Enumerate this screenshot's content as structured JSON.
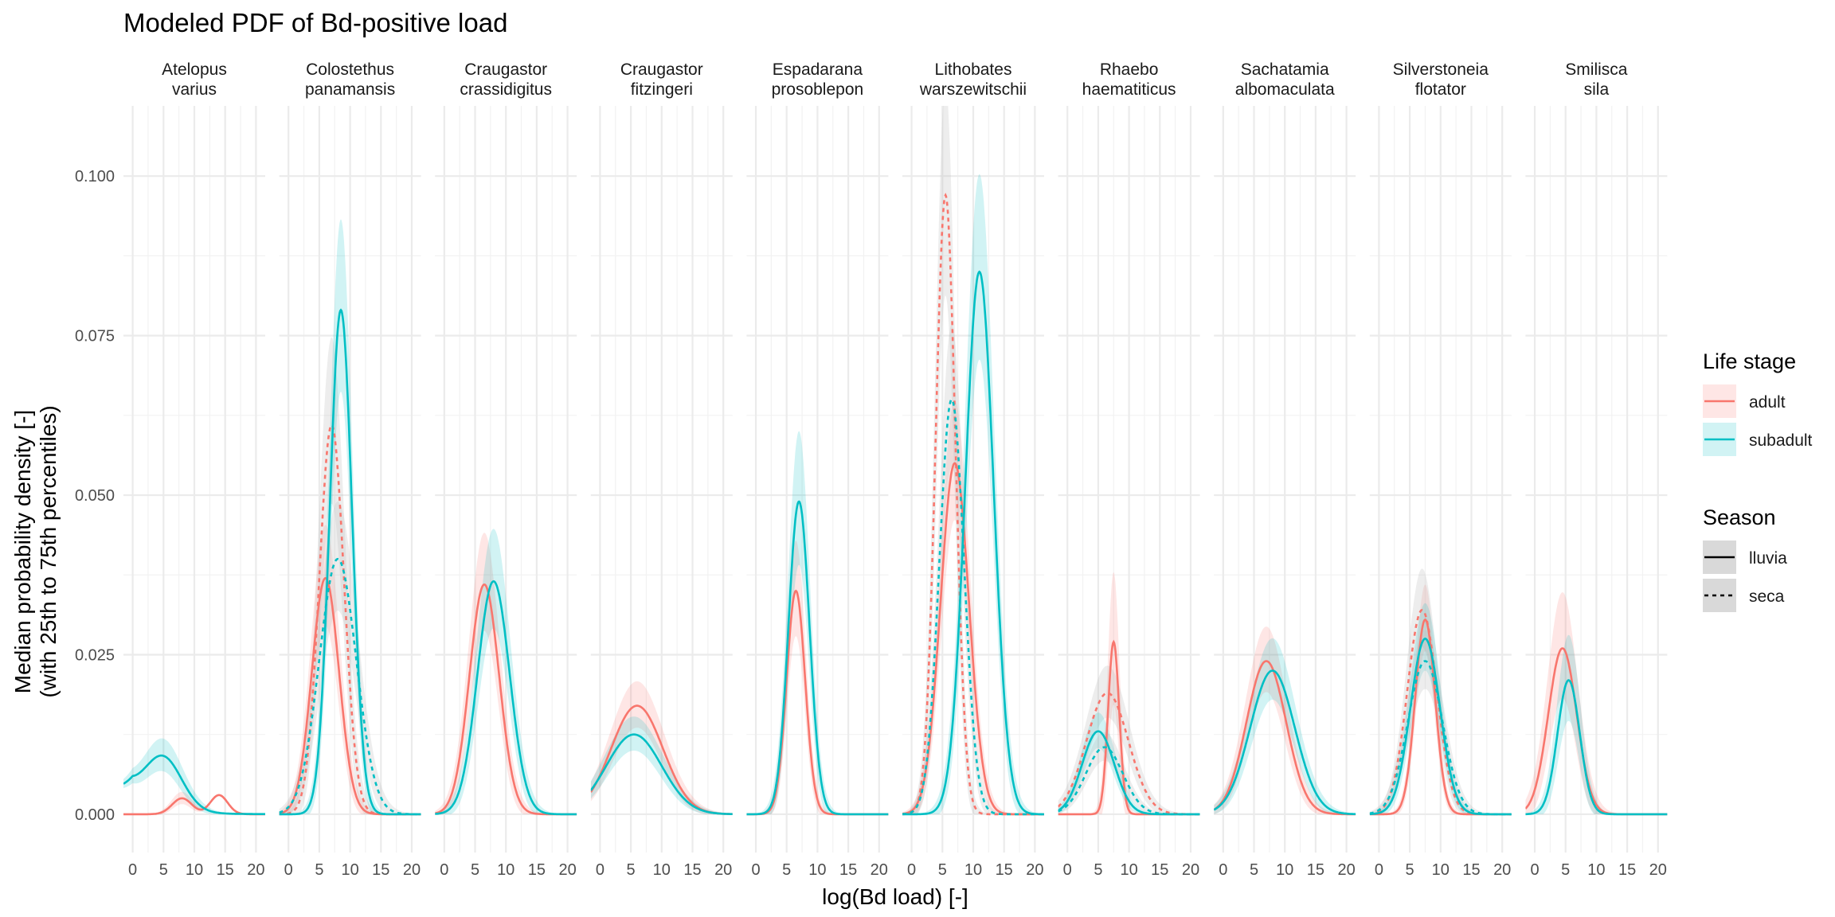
{
  "chart_data": {
    "type": "line",
    "title": "Modeled PDF of Bd-positive load",
    "xlabel": "log(Bd load) [-]",
    "ylabel_lines": [
      "Median probability density [-]",
      "(with 25th to 75th percentiles)"
    ],
    "xlim": [
      -1.5,
      21.5
    ],
    "ylim": [
      -0.006,
      0.111
    ],
    "xticks": [
      0,
      5,
      10,
      15,
      20
    ],
    "yticks": [
      0,
      0.025,
      0.05,
      0.075,
      0.1
    ],
    "ytick_labels": [
      "0.000",
      "0.025",
      "0.050",
      "0.075",
      "0.100"
    ],
    "grid": true,
    "legend_position": "right",
    "colors": {
      "adult": "#F8766D",
      "subadult": "#00BFC4",
      "band_gray": "#bdbdbd"
    },
    "legends": [
      {
        "title": "Life stage",
        "items": [
          {
            "key": "adult",
            "label": "adult"
          },
          {
            "key": "subadult",
            "label": "subadult"
          }
        ]
      },
      {
        "title": "Season",
        "items": [
          {
            "key": "lluvia",
            "label": "lluvia",
            "dash": "solid"
          },
          {
            "key": "seca",
            "label": "seca",
            "dash": "dashed"
          }
        ]
      }
    ],
    "panels": [
      {
        "name": "Atelopus\nvarius",
        "series": [
          {
            "stage": "adult",
            "season": "lluvia",
            "comps": [
              [
                0.0025,
                8,
                1.6
              ],
              [
                0.003,
                14,
                1.4
              ]
            ],
            "bw": 0.75
          },
          {
            "stage": "subadult",
            "season": "lluvia",
            "comps": [
              [
                0.008,
                5,
                3.0
              ]
            ],
            "bw": 0.75,
            "left": 0.004
          }
        ]
      },
      {
        "name": "Colostethus\npanamansis",
        "series": [
          {
            "stage": "adult",
            "season": "lluvia",
            "comps": [
              [
                0.037,
                6,
                2.2
              ]
            ],
            "bw": 0.5
          },
          {
            "stage": "adult",
            "season": "seca",
            "comps": [
              [
                0.061,
                7,
                2.0
              ]
            ],
            "bw": 0.5
          },
          {
            "stage": "subadult",
            "season": "lluvia",
            "comps": [
              [
                0.079,
                8.5,
                1.8
              ]
            ],
            "bw": 0.4
          },
          {
            "stage": "subadult",
            "season": "seca",
            "comps": [
              [
                0.04,
                8,
                3.0
              ]
            ],
            "bw": 0.5
          }
        ]
      },
      {
        "name": "Craugastor\ncrassidigitus",
        "series": [
          {
            "stage": "adult",
            "season": "lluvia",
            "comps": [
              [
                0.036,
                6.5,
                2.4
              ]
            ],
            "bw": 0.5
          },
          {
            "stage": "subadult",
            "season": "lluvia",
            "comps": [
              [
                0.0365,
                8,
                2.6
              ]
            ],
            "bw": 0.5
          }
        ]
      },
      {
        "name": "Craugastor\nfitzingeri",
        "series": [
          {
            "stage": "adult",
            "season": "lluvia",
            "comps": [
              [
                0.017,
                6,
                4.2
              ]
            ],
            "bw": 0.5
          },
          {
            "stage": "subadult",
            "season": "lluvia",
            "comps": [
              [
                0.0125,
                5.5,
                4.5
              ]
            ],
            "bw": 0.5
          }
        ]
      },
      {
        "name": "Espadarana\nprosoblepon",
        "series": [
          {
            "stage": "adult",
            "season": "lluvia",
            "comps": [
              [
                0.035,
                6.5,
                1.5
              ]
            ],
            "bw": 0.5
          },
          {
            "stage": "subadult",
            "season": "lluvia",
            "comps": [
              [
                0.049,
                7,
                1.7
              ]
            ],
            "bw": 0.5
          }
        ]
      },
      {
        "name": "Lithobates\nwarszewitschii",
        "series": [
          {
            "stage": "adult",
            "season": "lluvia",
            "comps": [
              [
                0.055,
                7,
                2.3
              ]
            ],
            "bw": 0.4
          },
          {
            "stage": "adult",
            "season": "seca",
            "comps": [
              [
                0.097,
                5.5,
                1.6
              ]
            ],
            "bw": 0.4
          },
          {
            "stage": "subadult",
            "season": "lluvia",
            "comps": [
              [
                0.085,
                11,
                2.3
              ]
            ],
            "bw": 0.4
          },
          {
            "stage": "subadult",
            "season": "seca",
            "comps": [
              [
                0.065,
                6.5,
                2.0
              ]
            ],
            "bw": 0.4
          }
        ]
      },
      {
        "name": "Rhaebo\nhaematiticus",
        "series": [
          {
            "stage": "adult",
            "season": "lluvia",
            "comps": [
              [
                0.027,
                7.5,
                0.9
              ]
            ],
            "bw": 0.9
          },
          {
            "stage": "adult",
            "season": "seca",
            "comps": [
              [
                0.019,
                6.5,
                3.4
              ]
            ],
            "bw": 0.5
          },
          {
            "stage": "subadult",
            "season": "lluvia",
            "comps": [
              [
                0.013,
                5,
                2.6
              ]
            ],
            "bw": 0.5
          },
          {
            "stage": "subadult",
            "season": "seca",
            "comps": [
              [
                0.0105,
                6,
                3.0
              ]
            ],
            "bw": 0.5
          }
        ]
      },
      {
        "name": "Sachatamia\nalbomaculata",
        "series": [
          {
            "stage": "adult",
            "season": "lluvia",
            "comps": [
              [
                0.024,
                7,
                3.2
              ]
            ],
            "bw": 0.5
          },
          {
            "stage": "subadult",
            "season": "lluvia",
            "comps": [
              [
                0.0225,
                8,
                3.6
              ]
            ],
            "bw": 0.5
          }
        ]
      },
      {
        "name": "Silverstoneia\nflotator",
        "series": [
          {
            "stage": "adult",
            "season": "lluvia",
            "comps": [
              [
                0.0305,
                7.5,
                1.6
              ]
            ],
            "bw": 0.4
          },
          {
            "stage": "adult",
            "season": "seca",
            "comps": [
              [
                0.032,
                7,
                2.4
              ]
            ],
            "bw": 0.45
          },
          {
            "stage": "subadult",
            "season": "lluvia",
            "comps": [
              [
                0.0275,
                7.5,
                2.4
              ]
            ],
            "bw": 0.45
          },
          {
            "stage": "subadult",
            "season": "seca",
            "comps": [
              [
                0.024,
                7.5,
                2.8
              ]
            ],
            "bw": 0.45
          }
        ]
      },
      {
        "name": "Smilisca\nsila",
        "series": [
          {
            "stage": "adult",
            "season": "lluvia",
            "comps": [
              [
                0.026,
                4.5,
                2.3
              ]
            ],
            "bw": 0.75
          },
          {
            "stage": "subadult",
            "season": "lluvia",
            "comps": [
              [
                0.021,
                5.5,
                1.8
              ]
            ],
            "bw": 0.75
          }
        ]
      }
    ]
  }
}
